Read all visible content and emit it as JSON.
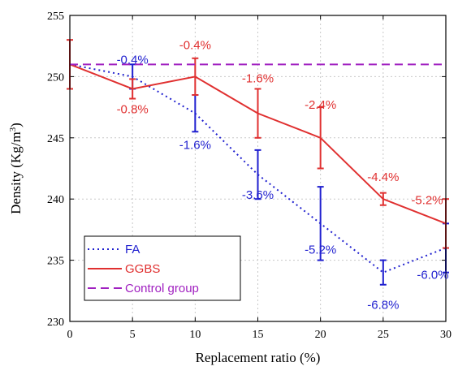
{
  "chart_data": {
    "type": "line",
    "xlabel": "Replacement ratio (%)",
    "ylabel_base": "Density (Kg/m",
    "ylabel_sup": "3",
    "ylabel_close": ")",
    "xlim": [
      0,
      30
    ],
    "ylim": [
      230,
      255
    ],
    "xticks": [
      0,
      5,
      10,
      15,
      20,
      25,
      30
    ],
    "yticks": [
      230,
      235,
      240,
      245,
      250,
      255
    ],
    "grid": true,
    "legend_position": "bottom-left",
    "series": [
      {
        "name": "FA",
        "color": "#1f1fcf",
        "style": "dotted",
        "x": [
          0,
          5,
          10,
          15,
          20,
          25,
          30
        ],
        "y": [
          251,
          250,
          247,
          242,
          238,
          234,
          236
        ],
        "err": [
          null,
          1,
          1.5,
          2,
          3,
          1,
          2
        ],
        "annotations": [
          "",
          "-0.4%",
          "-1.6%",
          "-3.6%",
          "-5.2%",
          "-6.8%",
          "-6.0%"
        ]
      },
      {
        "name": "GGBS",
        "color": "#e03030",
        "style": "solid",
        "x": [
          0,
          5,
          10,
          15,
          20,
          25,
          30
        ],
        "y": [
          251,
          249,
          250,
          247,
          245,
          240,
          238
        ],
        "err": [
          2,
          0.8,
          1.5,
          2,
          2.5,
          0.5,
          2
        ],
        "annotations": [
          "",
          "-0.8%",
          "-0.4%",
          "-1.6%",
          "-2.4%",
          "-4.4%",
          "-5.2%"
        ]
      },
      {
        "name": "Control group",
        "color": "#a020c0",
        "style": "dashed",
        "x": [
          0,
          30
        ],
        "y": [
          251,
          251
        ]
      }
    ]
  }
}
